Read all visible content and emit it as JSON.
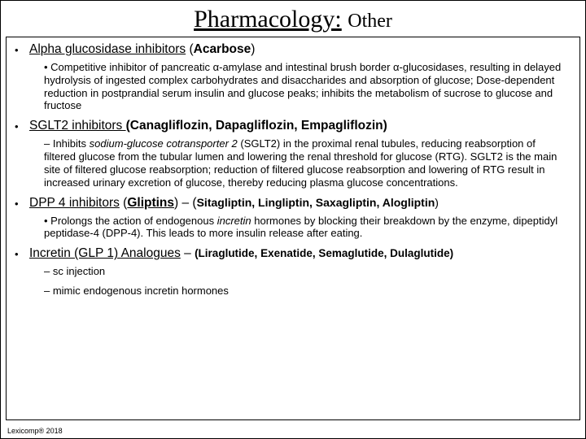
{
  "title_main": "Pharmacology:",
  "title_sub": "Other",
  "sections": [
    {
      "head_underline": "Alpha glucosidase inhibitors",
      "head_plain": " (",
      "head_bold": "Acarbose",
      "head_tail": ")",
      "sub_prefix": "• ",
      "sub_text": "Competitive inhibitor of pancreatic α-amylase and intestinal brush border α-glucosidases, resulting in delayed hydrolysis of ingested complex carbohydrates and disaccharides and absorption of glucose;   Dose-dependent reduction in postprandial serum insulin and glucose peaks; inhibits the metabolism of sucrose to glucose and fructose"
    },
    {
      "head_underline": "SGLT2 inhibitors ",
      "head_plain": "(",
      "head_bold": "Canagliflozin, Dapagliflozin, Empagliflozin",
      "head_tail": ")",
      "sub_prefix": "– Inhibits ",
      "sub_italic": "sodium-glucose cotransporter 2",
      "sub_text": " (SGLT2) in the proximal renal tubules, reducing reabsorption of filtered glucose from the tubular lumen and lowering the renal threshold for glucose (RTG). SGLT2 is the main site of filtered glucose reabsorption; reduction of filtered glucose reabsorption and lowering of RTG result in increased urinary excretion of glucose, thereby reducing plasma glucose concentrations."
    },
    {
      "head_underline": "DPP 4 inhibitors",
      "head_plain": " (",
      "head_bold_u": "Gliptins",
      "head_mid": ") – (",
      "head_bold2": "Sitagliptin, Lingliptin, Saxagliptin, Alogliptin",
      "head_tail": ")",
      "sub_prefix": "• ",
      "sub_text_a": "Prolongs the action of endogenous ",
      "sub_italic": "incretin",
      "sub_text_b": " hormones by blocking their breakdown by the enzyme, dipeptidyl peptidase-4 (DPP-4).  This leads to more insulin release after eating."
    },
    {
      "head_underline": "Incretin (GLP 1) Analogues",
      "head_plain": " – ",
      "head_bold": "(Liraglutide, Exenatide, Semaglutide, Dulaglutide)",
      "sub_lines": [
        "– sc injection",
        "– mimic endogenous incretin hormones"
      ]
    }
  ],
  "footer": "Lexicomp® 2018",
  "colors": {
    "text": "#000000",
    "background": "#ffffff",
    "border": "#000000"
  },
  "fonts": {
    "title_family": "Times New Roman",
    "body_family": "Arial",
    "title_size_pt": 30,
    "body_size_pt": 13
  }
}
